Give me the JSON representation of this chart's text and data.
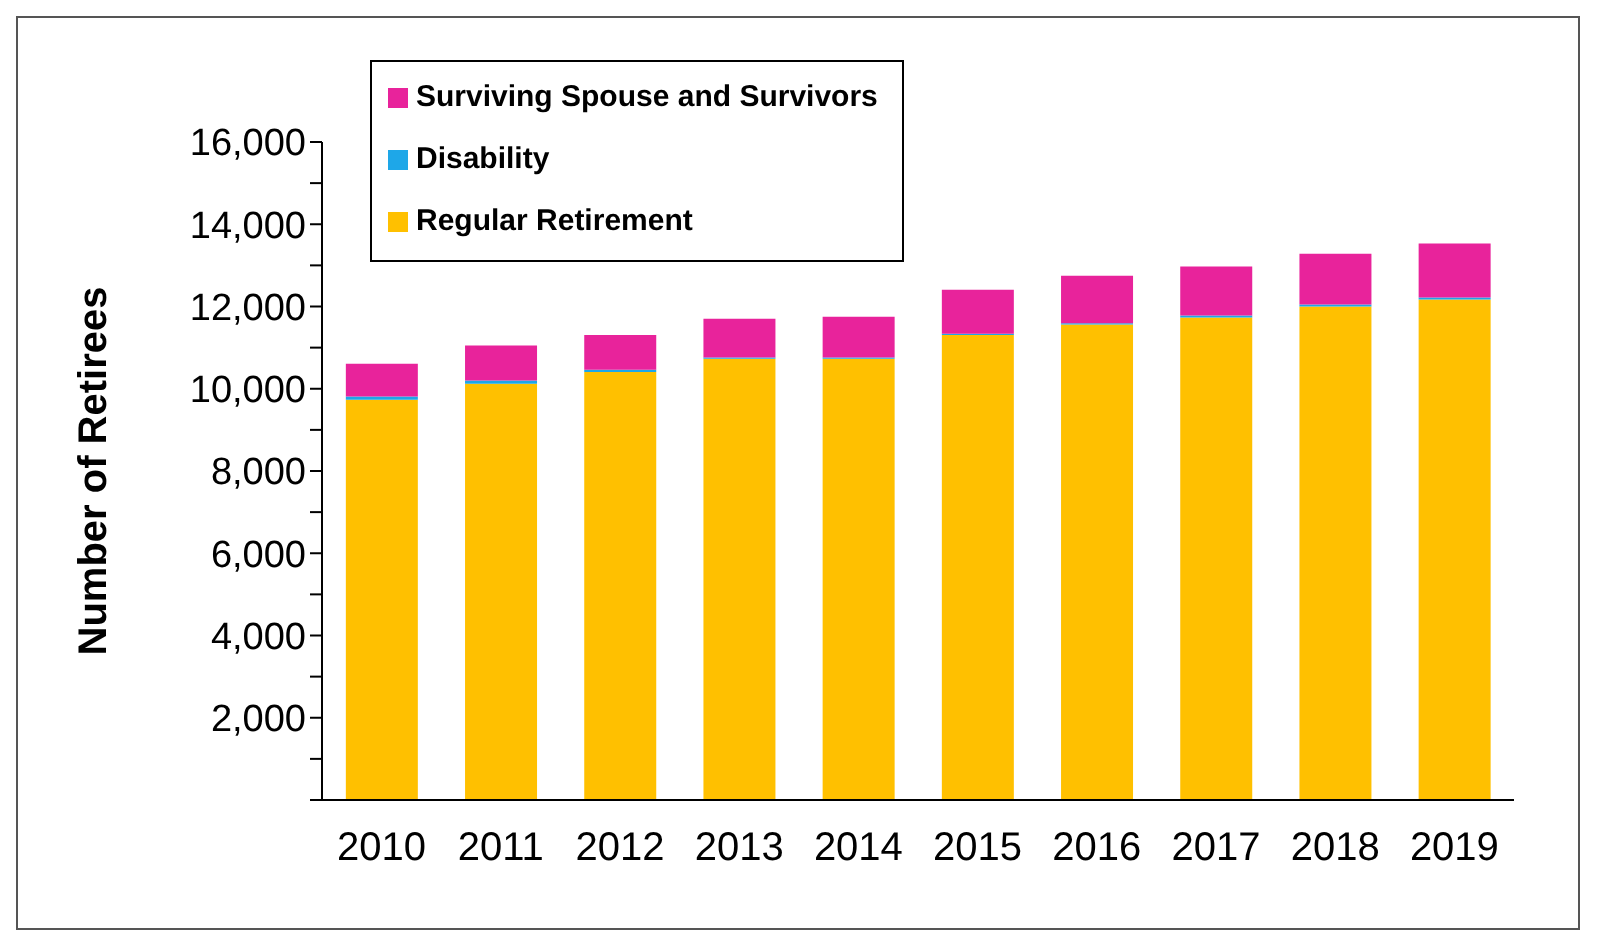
{
  "chart_data": {
    "type": "bar",
    "stacked": true,
    "ylabel": "Number of Retirees",
    "categories": [
      "2010",
      "2011",
      "2012",
      "2013",
      "2014",
      "2015",
      "2016",
      "2017",
      "2018",
      "2019"
    ],
    "series": [
      {
        "name": "Regular Retirement",
        "color": "#ffc000",
        "values": [
          9730,
          10120,
          10410,
          10730,
          10730,
          11310,
          11560,
          11730,
          12000,
          12170
        ]
      },
      {
        "name": "Disability",
        "color": "#1ea7e8",
        "values": [
          80,
          80,
          50,
          30,
          30,
          30,
          30,
          50,
          50,
          50
        ]
      },
      {
        "name": "Surviving Spouse and Survivors",
        "color": "#e8239b",
        "values": [
          800,
          850,
          850,
          940,
          990,
          1070,
          1160,
          1190,
          1230,
          1310
        ]
      }
    ],
    "ylim": [
      0,
      16000
    ],
    "yticks": [
      {
        "value": 0,
        "label": null
      },
      {
        "value": 1000,
        "label": null
      },
      {
        "value": 2000,
        "label": "2,000"
      },
      {
        "value": 3000,
        "label": null
      },
      {
        "value": 4000,
        "label": "4,000"
      },
      {
        "value": 5000,
        "label": null
      },
      {
        "value": 6000,
        "label": "6,000"
      },
      {
        "value": 7000,
        "label": null
      },
      {
        "value": 8000,
        "label": "8,000"
      },
      {
        "value": 9000,
        "label": null
      },
      {
        "value": 10000,
        "label": "10,000"
      },
      {
        "value": 11000,
        "label": null
      },
      {
        "value": 12000,
        "label": "12,000"
      },
      {
        "value": 13000,
        "label": null
      },
      {
        "value": 14000,
        "label": "14,000"
      },
      {
        "value": 15000,
        "label": null
      },
      {
        "value": 16000,
        "label": "16,000"
      }
    ],
    "grid": false,
    "legend": "top left"
  }
}
